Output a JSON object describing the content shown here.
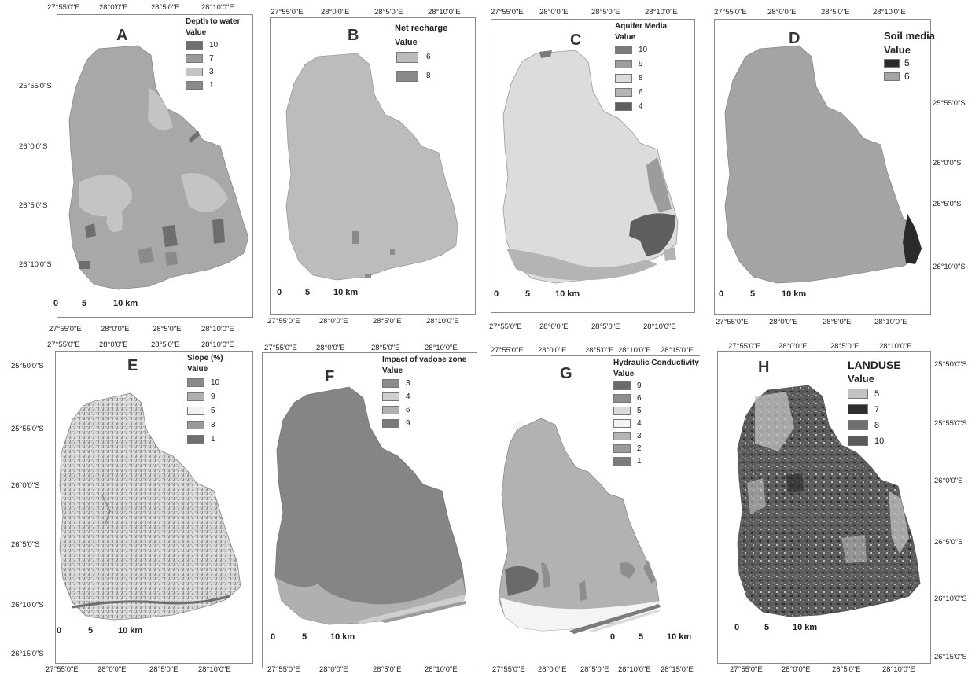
{
  "panels": [
    {
      "id": "A",
      "label": "A",
      "legend_title": "Depth to water",
      "value_label": "Value",
      "classes": [
        {
          "value": "10",
          "color": "#6e6e6e"
        },
        {
          "value": "7",
          "color": "#9a9a9a"
        },
        {
          "value": "3",
          "color": "#c4c4c4"
        },
        {
          "value": "1",
          "color": "#8a8a8a"
        }
      ],
      "top_ticks": [
        "27°55'0\"E",
        "28°0'0\"E",
        "28°5'0\"E",
        "28°10'0\"E"
      ],
      "bottom_ticks": [
        "27°55'0\"E",
        "28°0'0\"E",
        "28°5'0\"E",
        "28°10'0\"E"
      ],
      "left_ticks": [
        "25°55'0\"S",
        "26°0'0\"S",
        "26°5'0\"S",
        "26°10'0\"S"
      ],
      "scale": [
        "0",
        "5",
        "10 km"
      ],
      "base_color": "#a8a8a8"
    },
    {
      "id": "B",
      "label": "B",
      "legend_title": "Net recharge",
      "value_label": "Value",
      "classes": [
        {
          "value": "6",
          "color": "#bcbcbc"
        },
        {
          "value": "8",
          "color": "#8a8a8a"
        }
      ],
      "top_ticks": [
        "27°55'0\"E",
        "28°0'0\"E",
        "28°5'0\"E",
        "28°10'0\"E"
      ],
      "bottom_ticks": [
        "27°55'0\"E",
        "28°0'0\"E",
        "28°5'0\"E",
        "28°10'0\"E"
      ],
      "scale": [
        "0",
        "5",
        "10 km"
      ],
      "base_color": "#bcbcbc"
    },
    {
      "id": "C",
      "label": "C",
      "legend_title": "Aquifer Media",
      "value_label": "Value",
      "classes": [
        {
          "value": "10",
          "color": "#7a7a7a"
        },
        {
          "value": "9",
          "color": "#9c9c9c"
        },
        {
          "value": "8",
          "color": "#dcdcdc"
        },
        {
          "value": "6",
          "color": "#b4b4b4"
        },
        {
          "value": "4",
          "color": "#5e5e5e"
        }
      ],
      "top_ticks": [
        "27°55'0\"E",
        "28°0'0\"E",
        "28°5'0\"E",
        "28°10'0\"E"
      ],
      "bottom_ticks": [
        "27°55'0\"E",
        "28°0'0\"E",
        "28°5'0\"E",
        "28°10'0\"E"
      ],
      "scale": [
        "0",
        "5",
        "10 km"
      ],
      "base_color": "#dcdcdc"
    },
    {
      "id": "D",
      "label": "D",
      "legend_title": "Soil media",
      "value_label": "Value",
      "classes": [
        {
          "value": "5",
          "color": "#2a2a2a"
        },
        {
          "value": "6",
          "color": "#a4a4a4"
        }
      ],
      "top_ticks": [
        "27°55'0\"E",
        "28°0'0\"E",
        "28°5'0\"E",
        "28°10'0\"E"
      ],
      "bottom_ticks": [
        "27°55'0\"E",
        "28°0'0\"E",
        "28°5'0\"E",
        "28°10'0\"E"
      ],
      "right_ticks": [
        "25°55'0\"S",
        "26°0'0\"S",
        "26°5'0\"S",
        "26°10'0\"S"
      ],
      "scale": [
        "0",
        "5",
        "10 km"
      ],
      "base_color": "#a4a4a4"
    },
    {
      "id": "E",
      "label": "E",
      "legend_title": "Slope (%)",
      "value_label": "Value",
      "classes": [
        {
          "value": "10",
          "color": "#8a8a8a"
        },
        {
          "value": "9",
          "color": "#b0b0b0"
        },
        {
          "value": "5",
          "color": "#f2f2f2"
        },
        {
          "value": "3",
          "color": "#9a9a9a"
        },
        {
          "value": "1",
          "color": "#6e6e6e"
        }
      ],
      "top_ticks": [
        "27°55'0\"E",
        "28°0'0\"E",
        "28°5'0\"E",
        "28°10'0\"E"
      ],
      "bottom_ticks": [
        "27°55'0\"E",
        "28°0'0\"E",
        "28°5'0\"E",
        "28°10'0\"E"
      ],
      "left_ticks": [
        "25°50'0\"S",
        "25°55'0\"S",
        "26°0'0\"S",
        "26°5'0\"S",
        "26°10'0\"S",
        "26°15'0\"S"
      ],
      "scale": [
        "0",
        "5",
        "10 km"
      ],
      "base_color": "#d8d8d8"
    },
    {
      "id": "F",
      "label": "F",
      "legend_title": "Impact of vadose zone",
      "value_label": "Value",
      "classes": [
        {
          "value": "3",
          "color": "#8c8c8c"
        },
        {
          "value": "4",
          "color": "#cfcfcf"
        },
        {
          "value": "6",
          "color": "#b0b0b0"
        },
        {
          "value": "9",
          "color": "#7a7a7a"
        }
      ],
      "top_ticks": [
        "27°55'0\"E",
        "28°0'0\"E",
        "28°5'0\"E",
        "28°10'0\"E"
      ],
      "bottom_ticks": [
        "27°55'0\"E",
        "28°0'0\"E",
        "28°5'0\"E",
        "28°10'0\"E"
      ],
      "scale": [
        "0",
        "5",
        "10 km"
      ],
      "base_color": "#858585"
    },
    {
      "id": "G",
      "label": "G",
      "legend_title": "Hydraulic Conductivity",
      "value_label": "Value",
      "classes": [
        {
          "value": "9",
          "color": "#6a6a6a"
        },
        {
          "value": "6",
          "color": "#8e8e8e"
        },
        {
          "value": "5",
          "color": "#dadada"
        },
        {
          "value": "4",
          "color": "#f4f4f4"
        },
        {
          "value": "3",
          "color": "#b4b4b4"
        },
        {
          "value": "2",
          "color": "#9a9a9a"
        },
        {
          "value": "1",
          "color": "#7c7c7c"
        }
      ],
      "top_ticks": [
        "27°55'0\"E",
        "28°0'0\"E",
        "28°5'0\"E",
        "28°10'0\"E",
        "28°15'0\"E"
      ],
      "bottom_ticks": [
        "27°55'0\"E",
        "28°0'0\"E",
        "28°5'0\"E",
        "28°10'0\"E",
        "28°15'0\"E"
      ],
      "scale": [
        "0",
        "5",
        "10 km"
      ],
      "base_color": "#b2b2b2"
    },
    {
      "id": "H",
      "label": "H",
      "legend_title": "LANDUSE",
      "value_label": "Value",
      "classes": [
        {
          "value": "5",
          "color": "#c2c2c2"
        },
        {
          "value": "7",
          "color": "#2e2e2e"
        },
        {
          "value": "8",
          "color": "#707070"
        },
        {
          "value": "10",
          "color": "#5a5a5a"
        }
      ],
      "top_ticks": [
        "27°55'0\"E",
        "28°0'0\"E",
        "28°5'0\"E",
        "28°10'0\"E"
      ],
      "bottom_ticks": [
        "27°55'0\"E",
        "28°0'0\"E",
        "28°5'0\"E",
        "28°10'0\"E"
      ],
      "right_ticks": [
        "25°50'0\"S",
        "25°55'0\"S",
        "26°0'0\"S",
        "26°5'0\"S",
        "26°10'0\"S",
        "26°15'0\"S"
      ],
      "scale": [
        "0",
        "5",
        "10 km"
      ],
      "base_color": "#5c5c5c"
    }
  ]
}
